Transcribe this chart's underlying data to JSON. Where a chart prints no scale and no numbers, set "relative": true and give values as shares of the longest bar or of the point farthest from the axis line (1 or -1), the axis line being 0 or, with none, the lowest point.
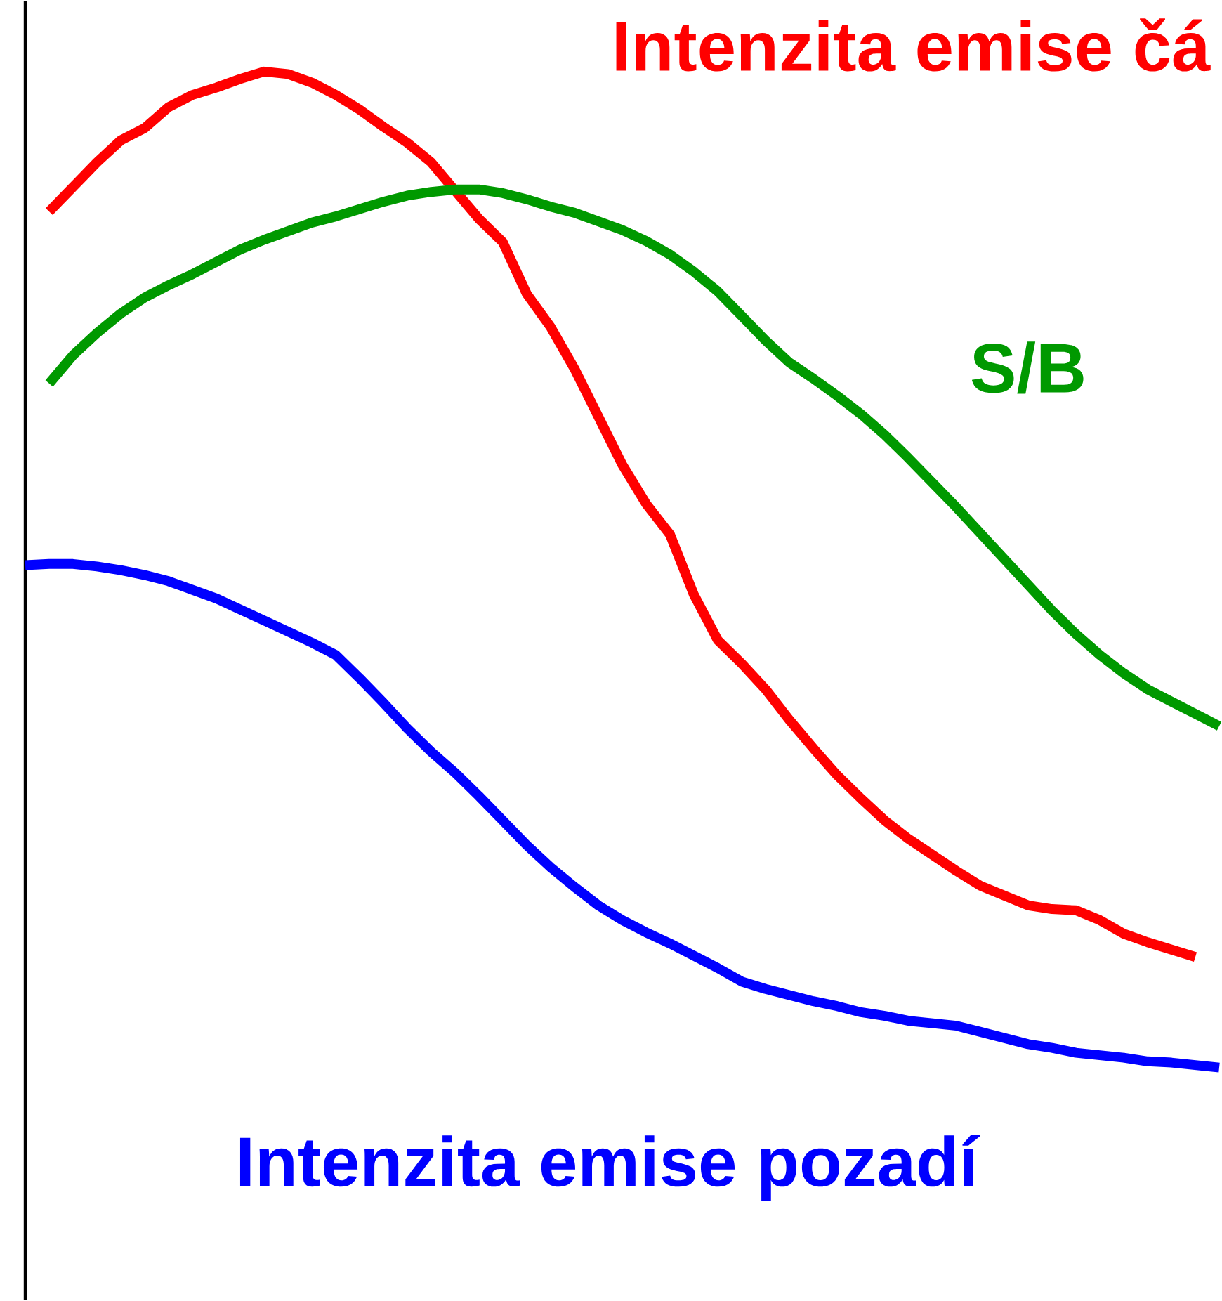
{
  "chart_data": {
    "type": "line",
    "relative": true,
    "categories": [
      null,
      null,
      null,
      null,
      null,
      null,
      null,
      null,
      null,
      null,
      null,
      null,
      null,
      null,
      null,
      null,
      null,
      null,
      null,
      null,
      null,
      null,
      null,
      null,
      null,
      null,
      null,
      null,
      null,
      null,
      null,
      null,
      null,
      null,
      null,
      null,
      null,
      null,
      null,
      null,
      null,
      null,
      null,
      null,
      null,
      null,
      null,
      null,
      null,
      null,
      null
    ],
    "series": [
      {
        "name": "Intenzita emise čá",
        "color": "#ff0000",
        "values": [
          null,
          0.886,
          0.906,
          0.926,
          0.944,
          0.954,
          0.971,
          0.981,
          0.987,
          0.994,
          1.0,
          0.998,
          0.991,
          0.981,
          0.969,
          0.955,
          0.942,
          0.926,
          0.903,
          0.88,
          0.861,
          0.819,
          0.792,
          0.758,
          0.719,
          0.68,
          0.648,
          0.623,
          0.574,
          0.537,
          0.518,
          0.497,
          0.472,
          0.449,
          0.427,
          0.408,
          0.39,
          0.375,
          0.362,
          0.349,
          0.337,
          0.329,
          0.321,
          0.318,
          0.317,
          0.309,
          0.298,
          0.291,
          0.285,
          0.279,
          null
        ]
      },
      {
        "name": "S/B",
        "color": "#009900",
        "values": [
          null,
          0.746,
          0.769,
          0.787,
          0.803,
          0.816,
          0.826,
          0.835,
          0.845,
          0.855,
          0.863,
          0.87,
          0.877,
          0.882,
          0.888,
          0.894,
          0.899,
          0.902,
          0.904,
          0.904,
          0.901,
          0.896,
          0.89,
          0.885,
          0.878,
          0.871,
          0.862,
          0.851,
          0.837,
          0.821,
          0.801,
          0.781,
          0.763,
          0.75,
          0.736,
          0.721,
          0.704,
          0.685,
          0.665,
          0.645,
          0.624,
          0.603,
          0.582,
          0.561,
          0.542,
          0.525,
          0.51,
          0.497,
          0.487,
          0.477,
          0.467
        ]
      },
      {
        "name": "Intenzita emise pozadí",
        "color": "#0000ff",
        "values": [
          0.598,
          0.599,
          0.599,
          0.597,
          0.594,
          0.59,
          0.585,
          0.578,
          0.571,
          0.562,
          0.553,
          0.544,
          0.535,
          0.525,
          0.506,
          0.486,
          0.465,
          0.446,
          0.429,
          0.41,
          0.39,
          0.37,
          0.352,
          0.336,
          0.321,
          0.309,
          0.299,
          0.29,
          0.28,
          0.27,
          0.259,
          0.253,
          0.248,
          0.243,
          0.239,
          0.234,
          0.231,
          0.227,
          0.225,
          0.223,
          0.218,
          0.213,
          0.208,
          0.205,
          0.201,
          0.199,
          0.197,
          0.194,
          0.193,
          0.191,
          0.189
        ]
      }
    ]
  }
}
